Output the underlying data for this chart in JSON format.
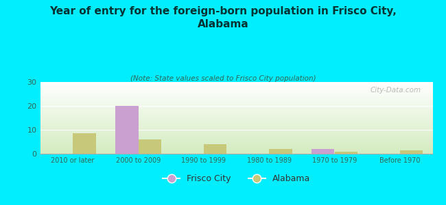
{
  "title": "Year of entry for the foreign-born population in Frisco City,\nAlabama",
  "subtitle": "(Note: State values scaled to Frisco City population)",
  "categories": [
    "2010 or later",
    "2000 to 2009",
    "1990 to 1999",
    "1980 to 1989",
    "1970 to 1979",
    "Before 1970"
  ],
  "frisco_city_values": [
    0,
    20,
    0,
    0,
    2,
    0
  ],
  "alabama_values": [
    8.5,
    6,
    4,
    2,
    1,
    1.5
  ],
  "frisco_city_color": "#c9a0d0",
  "alabama_color": "#c8c87a",
  "background_color": "#00eeff",
  "ylim": [
    0,
    30
  ],
  "yticks": [
    0,
    10,
    20,
    30
  ],
  "bar_width": 0.35,
  "legend_labels": [
    "Frisco City",
    "Alabama"
  ],
  "watermark": "City-Data.com",
  "title_color": "#003333",
  "subtitle_color": "#336655",
  "tick_color": "#336655",
  "plot_bg_top": "#ffffff",
  "plot_bg_bottom": "#d4ecc0"
}
